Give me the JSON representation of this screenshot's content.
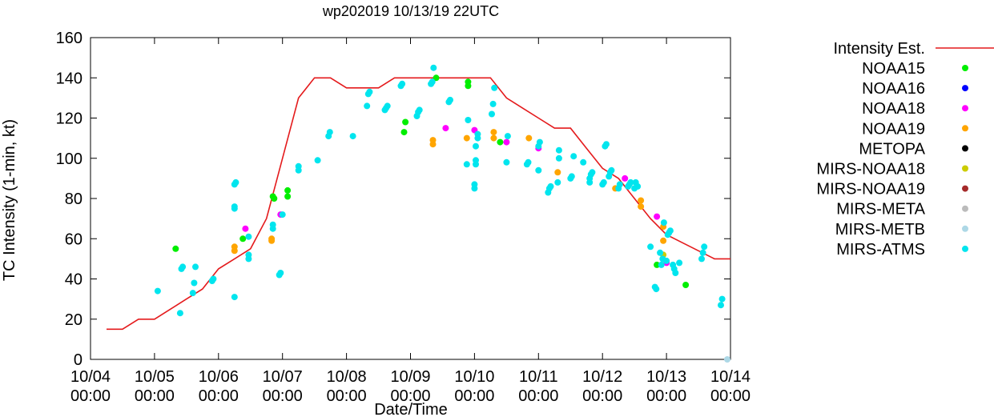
{
  "chart_data": {
    "type": "scatter",
    "title": "wp202019 10/13/19 22UTC",
    "xlabel": "Date/Time",
    "ylabel": "TC Intensity (1-min, kt)",
    "ylim": [
      0,
      160
    ],
    "yticks": [
      0,
      20,
      40,
      60,
      80,
      100,
      120,
      140,
      160
    ],
    "xlim": [
      0,
      10
    ],
    "xtick_labels": [
      [
        "10/04",
        "00:00"
      ],
      [
        "10/05",
        "00:00"
      ],
      [
        "10/06",
        "00:00"
      ],
      [
        "10/07",
        "00:00"
      ],
      [
        "10/08",
        "00:00"
      ],
      [
        "10/09",
        "00:00"
      ],
      [
        "10/10",
        "00:00"
      ],
      [
        "10/11",
        "00:00"
      ],
      [
        "10/12",
        "00:00"
      ],
      [
        "10/13",
        "00:00"
      ],
      [
        "10/14",
        "00:00"
      ]
    ],
    "grid": false,
    "legend_position": "right",
    "line_series": {
      "name": "Intensity Est.",
      "color": "#e41a1c",
      "points": [
        [
          0.25,
          15
        ],
        [
          0.5,
          15
        ],
        [
          0.75,
          20
        ],
        [
          1.0,
          20
        ],
        [
          1.25,
          25
        ],
        [
          1.5,
          30
        ],
        [
          1.75,
          35
        ],
        [
          2.0,
          45
        ],
        [
          2.25,
          50
        ],
        [
          2.5,
          55
        ],
        [
          2.75,
          70
        ],
        [
          3.0,
          100
        ],
        [
          3.25,
          130
        ],
        [
          3.5,
          140
        ],
        [
          3.75,
          140
        ],
        [
          4.0,
          135
        ],
        [
          4.25,
          135
        ],
        [
          4.5,
          135
        ],
        [
          4.75,
          140
        ],
        [
          5.0,
          140
        ],
        [
          5.25,
          140
        ],
        [
          5.5,
          140
        ],
        [
          5.75,
          140
        ],
        [
          6.0,
          140
        ],
        [
          6.25,
          140
        ],
        [
          6.5,
          130
        ],
        [
          6.75,
          125
        ],
        [
          7.0,
          120
        ],
        [
          7.25,
          115
        ],
        [
          7.5,
          115
        ],
        [
          7.75,
          105
        ],
        [
          8.0,
          95
        ],
        [
          8.25,
          90
        ],
        [
          8.5,
          80
        ],
        [
          8.75,
          70
        ],
        [
          9.0,
          62
        ],
        [
          9.25,
          58
        ],
        [
          9.5,
          54
        ],
        [
          9.75,
          50
        ],
        [
          10.0,
          50
        ]
      ]
    },
    "series": [
      {
        "name": "NOAA15",
        "color": "#00ee00",
        "points": [
          [
            1.33,
            55
          ],
          [
            2.38,
            60
          ],
          [
            2.85,
            81
          ],
          [
            2.87,
            80
          ],
          [
            3.08,
            84
          ],
          [
            3.08,
            81
          ],
          [
            4.92,
            118
          ],
          [
            4.9,
            113
          ],
          [
            5.4,
            140
          ],
          [
            5.9,
            138
          ],
          [
            5.9,
            136
          ],
          [
            6.4,
            108
          ],
          [
            8.85,
            47
          ],
          [
            9.3,
            37
          ]
        ]
      },
      {
        "name": "NOAA16",
        "color": "#0000ff",
        "points": []
      },
      {
        "name": "NOAA18",
        "color": "#ff00ff",
        "points": [
          [
            2.42,
            65
          ],
          [
            2.97,
            72
          ],
          [
            5.55,
            115
          ],
          [
            6.0,
            114
          ],
          [
            6.5,
            108
          ],
          [
            7.0,
            105
          ],
          [
            8.35,
            90
          ],
          [
            8.85,
            71
          ],
          [
            9.0,
            48
          ]
        ]
      },
      {
        "name": "NOAA19",
        "color": "#ffa500",
        "points": [
          [
            2.25,
            54
          ],
          [
            2.25,
            56
          ],
          [
            2.83,
            59
          ],
          [
            2.83,
            60
          ],
          [
            5.35,
            107
          ],
          [
            5.35,
            109
          ],
          [
            5.88,
            110
          ],
          [
            6.3,
            113
          ],
          [
            6.3,
            110
          ],
          [
            6.85,
            110
          ],
          [
            7.3,
            93
          ],
          [
            8.2,
            85
          ],
          [
            8.6,
            76
          ],
          [
            8.6,
            79
          ],
          [
            8.95,
            59
          ],
          [
            8.95,
            66
          ]
        ]
      },
      {
        "name": "METOPA",
        "color": "#000000",
        "points": []
      },
      {
        "name": "MIRS-NOAA18",
        "color": "#cccc00",
        "points": [
          [
            8.95,
            52
          ]
        ]
      },
      {
        "name": "MIRS-NOAA19",
        "color": "#a52a2a",
        "points": []
      },
      {
        "name": "MIRS-META",
        "color": "#bbbbbb",
        "points": []
      },
      {
        "name": "MIRS-METB",
        "color": "#add8e6",
        "points": [
          [
            9.95,
            0
          ]
        ]
      },
      {
        "name": "MIRS-ATMS",
        "color": "#00e5ee",
        "points": [
          [
            1.05,
            34
          ],
          [
            1.4,
            23
          ],
          [
            1.42,
            45
          ],
          [
            1.44,
            46
          ],
          [
            1.6,
            33
          ],
          [
            1.62,
            38
          ],
          [
            1.64,
            46
          ],
          [
            1.9,
            39
          ],
          [
            1.92,
            40
          ],
          [
            2.25,
            31
          ],
          [
            2.25,
            75
          ],
          [
            2.25,
            76
          ],
          [
            2.25,
            87
          ],
          [
            2.27,
            88
          ],
          [
            2.47,
            50
          ],
          [
            2.47,
            52
          ],
          [
            2.47,
            61
          ],
          [
            2.85,
            65
          ],
          [
            2.85,
            67
          ],
          [
            2.95,
            42
          ],
          [
            2.97,
            43
          ],
          [
            3.0,
            72
          ],
          [
            3.25,
            94
          ],
          [
            3.25,
            96
          ],
          [
            3.55,
            99
          ],
          [
            3.72,
            111
          ],
          [
            3.74,
            113
          ],
          [
            4.1,
            111
          ],
          [
            4.32,
            126
          ],
          [
            4.34,
            132
          ],
          [
            4.36,
            133
          ],
          [
            4.6,
            124
          ],
          [
            4.62,
            125
          ],
          [
            4.64,
            126
          ],
          [
            4.85,
            136
          ],
          [
            4.87,
            137
          ],
          [
            5.1,
            121
          ],
          [
            5.12,
            123
          ],
          [
            5.14,
            124
          ],
          [
            5.32,
            137
          ],
          [
            5.34,
            138
          ],
          [
            5.36,
            145
          ],
          [
            5.6,
            128
          ],
          [
            5.62,
            129
          ],
          [
            5.88,
            97
          ],
          [
            5.9,
            119
          ],
          [
            6.0,
            85
          ],
          [
            6.0,
            87
          ],
          [
            6.02,
            97
          ],
          [
            6.02,
            99
          ],
          [
            6.02,
            106
          ],
          [
            6.05,
            110
          ],
          [
            6.05,
            112
          ],
          [
            6.27,
            122
          ],
          [
            6.29,
            127
          ],
          [
            6.31,
            135
          ],
          [
            6.5,
            98
          ],
          [
            6.52,
            111
          ],
          [
            6.82,
            97
          ],
          [
            6.84,
            98
          ],
          [
            7.0,
            94
          ],
          [
            7.0,
            106
          ],
          [
            7.02,
            108
          ],
          [
            7.15,
            83
          ],
          [
            7.17,
            85
          ],
          [
            7.19,
            86
          ],
          [
            7.3,
            88
          ],
          [
            7.32,
            100
          ],
          [
            7.32,
            104
          ],
          [
            7.5,
            90
          ],
          [
            7.52,
            91
          ],
          [
            7.55,
            101
          ],
          [
            7.7,
            98
          ],
          [
            7.8,
            88
          ],
          [
            7.8,
            90
          ],
          [
            7.82,
            92
          ],
          [
            7.84,
            93
          ],
          [
            8.0,
            87
          ],
          [
            8.02,
            88
          ],
          [
            8.04,
            106
          ],
          [
            8.06,
            107
          ],
          [
            8.1,
            91
          ],
          [
            8.12,
            93
          ],
          [
            8.14,
            94
          ],
          [
            8.25,
            85
          ],
          [
            8.27,
            87
          ],
          [
            8.4,
            86
          ],
          [
            8.42,
            87
          ],
          [
            8.44,
            88
          ],
          [
            8.5,
            85
          ],
          [
            8.52,
            88
          ],
          [
            8.55,
            86
          ],
          [
            8.75,
            56
          ],
          [
            8.82,
            36
          ],
          [
            8.84,
            35
          ],
          [
            8.9,
            53
          ],
          [
            8.92,
            47
          ],
          [
            8.94,
            50
          ],
          [
            8.96,
            68
          ],
          [
            9.0,
            49
          ],
          [
            9.02,
            62
          ],
          [
            9.04,
            63
          ],
          [
            9.06,
            64
          ],
          [
            9.1,
            47
          ],
          [
            9.12,
            45
          ],
          [
            9.14,
            43
          ],
          [
            9.2,
            48
          ],
          [
            9.55,
            50
          ],
          [
            9.57,
            53
          ],
          [
            9.59,
            56
          ],
          [
            9.85,
            27
          ],
          [
            9.87,
            30
          ]
        ]
      }
    ]
  }
}
